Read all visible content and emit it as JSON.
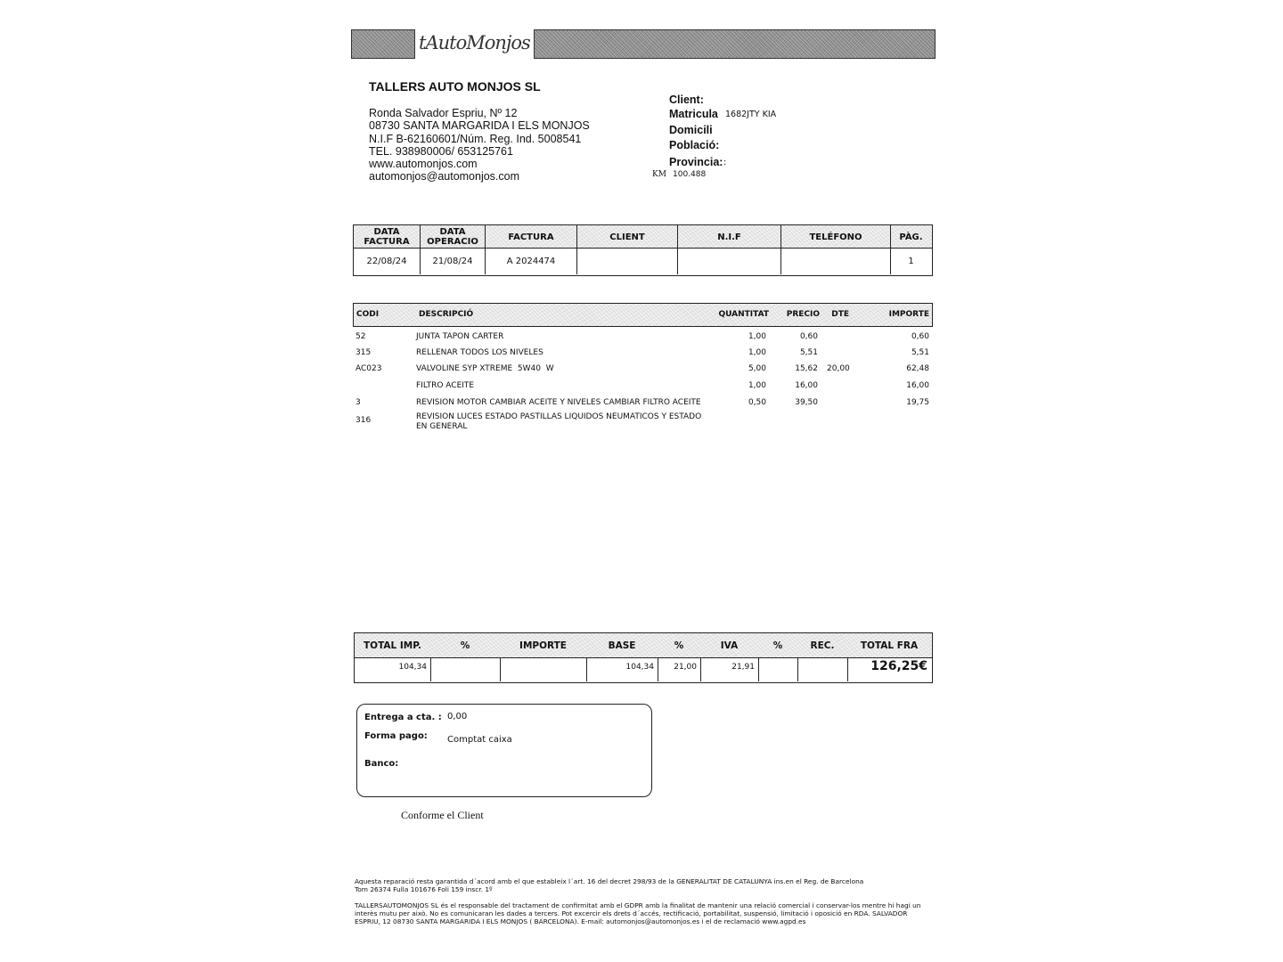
{
  "logo_text": "tAutoMonjos",
  "company": {
    "name": "TALLERS AUTO MONJOS SL",
    "address_lines": [
      "Ronda Salvador Espriu, Nº 12",
      "08730 SANTA MARGARIDA I ELS MONJOS",
      "N.I.F B-62160601/Núm. Reg. Ind. 5008541",
      "TEL. 938980006/ 653125761",
      "www.automonjos.com",
      "automonjos@automonjos.com"
    ]
  },
  "client": {
    "client_label": "Client:",
    "matricula_label": "Matricula",
    "matricula_value": "1682JTY KIA",
    "domicili_label": "Domicili",
    "poblacio_label": "Població:",
    "provincia_label": "Provincia:",
    "provincia_value": ":",
    "km_label": "KM",
    "km_value": "100.488"
  },
  "invoice_header": {
    "columns": [
      "DATA FACTURA",
      "DATA OPERACIO",
      "FACTURA",
      "CLIENT",
      "N.I.F",
      "TELÉFONO",
      "PÀG."
    ],
    "values": [
      "22/08/24",
      "21/08/24",
      "A 2024474",
      "",
      "",
      "",
      "1"
    ]
  },
  "items": {
    "columns": {
      "codi": "CODI",
      "descripcio": "DESCRIPCIÓ",
      "quantitat": "QUANTITAT",
      "precio": "PRECIO",
      "dte": "DTE",
      "importe": "IMPORTE"
    },
    "rows": [
      {
        "codi": "52",
        "descripcio": "JUNTA TAPON CARTER",
        "quantitat": "1,00",
        "precio": "0,60",
        "dte": "",
        "importe": "0,60"
      },
      {
        "codi": "315",
        "descripcio": "RELLENAR TODOS LOS NIVELES",
        "quantitat": "1,00",
        "precio": "5,51",
        "dte": "",
        "importe": "5,51"
      },
      {
        "codi": "AC023",
        "descripcio": "VALVOLINE SYP XTREME  5W40  W",
        "quantitat": "5,00",
        "precio": "15,62",
        "dte": "20,00",
        "importe": "62,48"
      },
      {
        "codi": "",
        "descripcio": "FILTRO ACEITE",
        "quantitat": "1,00",
        "precio": "16,00",
        "dte": "",
        "importe": "16,00"
      },
      {
        "codi": "3",
        "descripcio": "REVISION MOTOR CAMBIAR ACEITE Y NIVELES CAMBIAR FILTRO ACEITE",
        "quantitat": "0,50",
        "precio": "39,50",
        "dte": "",
        "importe": "19,75"
      },
      {
        "codi": "316",
        "descripcio": "REVISION LUCES ESTADO PASTILLAS LIQUIDOS NEUMATICOS Y ESTADO\nEN GENERAL",
        "quantitat": "",
        "precio": "",
        "dte": "",
        "importe": ""
      }
    ]
  },
  "totals": {
    "columns": [
      "TOTAL IMP.",
      "%",
      "IMPORTE",
      "BASE",
      "%",
      "IVA",
      "%",
      "REC.",
      "TOTAL FRA"
    ],
    "values": [
      "104,34",
      "",
      "",
      "104,34",
      "21,00",
      "21,91",
      "",
      "",
      "126,25€"
    ]
  },
  "payment": {
    "entrega_label": "Entrega a cta. :",
    "entrega_value": "0,00",
    "forma_label": "Forma pago:",
    "forma_value": "Comptat caixa",
    "banco_label": "Banco:"
  },
  "conforme": "Conforme el Client",
  "footer": {
    "lines1": [
      "Aquesta reparació resta garantida d´acord amb el que estableix l´art. 16 del decret 298/93 de la GENERALITAT DE CATALUNYA ins.en el Reg. de Barcelona",
      "Tom 26374 Fulla 101676 Foli 159 inscr. 1º"
    ],
    "lines2": [
      "TALLERSAUTOMONJOS SL és el responsable del tractament de confirmitat amb el GDPR amb la finalitat de mantenir una relació comercial i conservar-los mentre hi hagi un",
      "interès mutu per això. No es comunicaran les dades a tercers. Pot excercir els drets d´accés, rectificació, portabilitat, suspensió, limitació i oposició en RDA. SALVADOR",
      "ESPRIU, 12 08730 SANTA MARGARIDA I ELS MONJOS ( BARCELONA). E-mail: automonjos@automonjos.es i el de reclamació www.agpd.es"
    ]
  }
}
